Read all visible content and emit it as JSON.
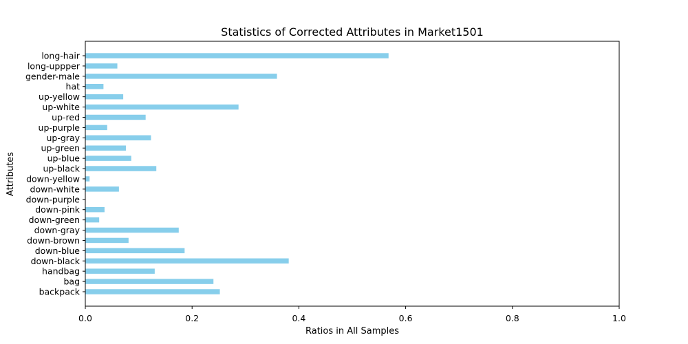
{
  "chart_data": {
    "type": "bar",
    "orientation": "horizontal",
    "title": "Statistics of Corrected Attributes in Market1501",
    "xlabel": "Ratios in All Samples",
    "ylabel": "Attributes",
    "xlim": [
      0,
      1.0
    ],
    "xticks": [
      "0.0",
      "0.2",
      "0.4",
      "0.6",
      "0.8",
      "1.0"
    ],
    "bar_color": "#87ceeb",
    "grid": false,
    "categories": [
      "backpack",
      "bag",
      "handbag",
      "down-black",
      "down-blue",
      "down-brown",
      "down-gray",
      "down-green",
      "down-pink",
      "down-purple",
      "down-white",
      "down-yellow",
      "up-black",
      "up-blue",
      "up-green",
      "up-gray",
      "up-purple",
      "up-red",
      "up-white",
      "up-yellow",
      "hat",
      "gender-male",
      "long-uppper",
      "long-hair"
    ],
    "values": [
      0.252,
      0.24,
      0.13,
      0.381,
      0.186,
      0.081,
      0.175,
      0.026,
      0.036,
      0.0,
      0.063,
      0.008,
      0.133,
      0.086,
      0.076,
      0.123,
      0.041,
      0.113,
      0.287,
      0.071,
      0.034,
      0.359,
      0.06,
      0.568
    ]
  }
}
